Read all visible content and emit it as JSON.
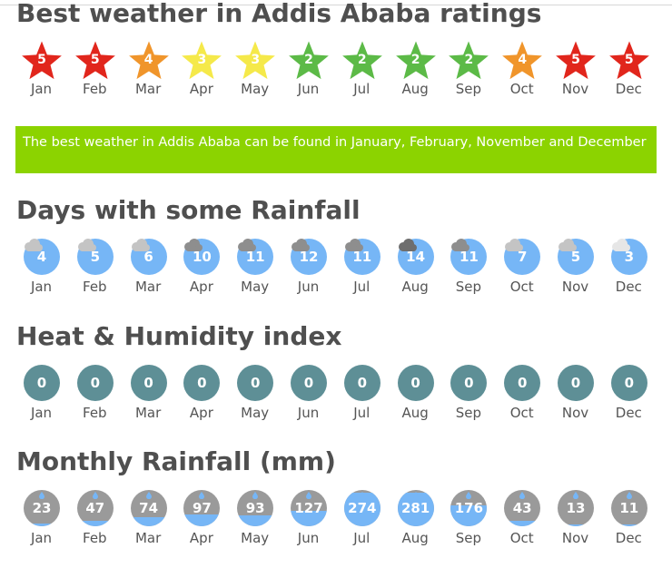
{
  "months": [
    "Jan",
    "Feb",
    "Mar",
    "Apr",
    "May",
    "Jun",
    "Jul",
    "Aug",
    "Sep",
    "Oct",
    "Nov",
    "Dec"
  ],
  "ratings": {
    "title": "Best weather in Addis Ababa ratings",
    "values": [
      5,
      5,
      4,
      3,
      3,
      2,
      2,
      2,
      2,
      4,
      5,
      5
    ],
    "colors": {
      "5": "#e1261c",
      "4": "#f0952b",
      "3": "#f5e94a",
      "2": "#5cba47"
    }
  },
  "banner": {
    "text": "The best weather in Addis Ababa can be found in January, February, November and December",
    "color": "#8cd300"
  },
  "rain_days": {
    "title": "Days with some Rainfall",
    "values": [
      4,
      5,
      6,
      10,
      11,
      12,
      11,
      14,
      11,
      7,
      5,
      3
    ],
    "cloud_colors": [
      "#c4c4c4",
      "#c4c4c4",
      "#c4c4c4",
      "#8e8e8e",
      "#8e8e8e",
      "#8e8e8e",
      "#8e8e8e",
      "#6e6e6e",
      "#8e8e8e",
      "#c4c4c4",
      "#c4c4c4",
      "#e6e6e6"
    ],
    "circle_color": "#76b6f6"
  },
  "heat_index": {
    "title": "Heat & Humidity index",
    "values": [
      0,
      0,
      0,
      0,
      0,
      0,
      0,
      0,
      0,
      0,
      0,
      0
    ],
    "circle_color": "#5e8f96"
  },
  "monthly_rainfall": {
    "title": "Monthly Rainfall (mm)",
    "values": [
      23,
      47,
      74,
      97,
      93,
      127,
      274,
      281,
      176,
      43,
      13,
      11
    ],
    "circle_color": "#9a9a9a",
    "fill_color": "#76b6f6"
  }
}
